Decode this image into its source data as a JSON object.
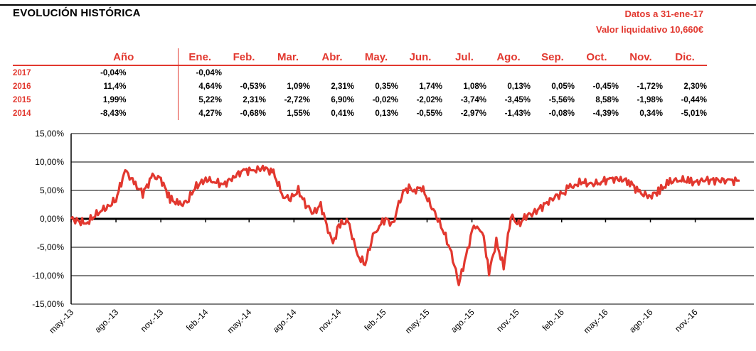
{
  "header": {
    "title": "EVOLUCIÓN HISTÓRICA",
    "date_label": "Datos a 31-ene-17",
    "nav_label": "Valor liquidativo 10,660€"
  },
  "colors": {
    "accent": "#e2382f",
    "line": "#e2382f",
    "grid": "#000000"
  },
  "table": {
    "headers": [
      "Año",
      "Ene.",
      "Feb.",
      "Mar.",
      "Abr.",
      "May.",
      "Jun.",
      "Jul.",
      "Ago.",
      "Sep.",
      "Oct.",
      "Nov.",
      "Dic."
    ],
    "rows": [
      {
        "year": "2017",
        "annual": "-0,04%",
        "months": [
          "-0,04%",
          "",
          "",
          "",
          "",
          "",
          "",
          "",
          "",
          "",
          "",
          ""
        ]
      },
      {
        "year": "2016",
        "annual": "11,4%",
        "months": [
          "4,64%",
          "-0,53%",
          "1,09%",
          "2,31%",
          "0,35%",
          "1,74%",
          "1,08%",
          "0,13%",
          "0,05%",
          "-0,45%",
          "-1,72%",
          "2,30%"
        ]
      },
      {
        "year": "2015",
        "annual": "1,99%",
        "months": [
          "5,22%",
          "2,31%",
          "-2,72%",
          "6,90%",
          "-0,02%",
          "-2,02%",
          "-3,74%",
          "-3,45%",
          "-5,56%",
          "8,58%",
          "-1,98%",
          "-0,44%"
        ]
      },
      {
        "year": "2014",
        "annual": "-8,43%",
        "months": [
          "4,27%",
          "-0,68%",
          "1,55%",
          "0,41%",
          "0,13%",
          "-0,55%",
          "-2,97%",
          "-1,43%",
          "-0,08%",
          "-4,39%",
          "0,34%",
          "-5,01%"
        ]
      }
    ]
  },
  "chart_data": {
    "type": "line",
    "title": "",
    "xlabel": "",
    "ylabel": "",
    "ylim": [
      -15,
      15
    ],
    "yticks": [
      "15,00%",
      "10,00%",
      "5,00%",
      "0,00%",
      "-5,00%",
      "-10,00%",
      "-15,00%"
    ],
    "xtick_labels": [
      "may.-13",
      "ago.-13",
      "nov.-13",
      "feb.-14",
      "may.-14",
      "ago.-14",
      "nov.-14",
      "feb.-15",
      "may.-15",
      "ago.-15",
      "nov.-15",
      "feb.-16",
      "may.-16",
      "ago.-16",
      "nov.-16"
    ],
    "grid": true,
    "series": [
      {
        "x": [
          "2013-05-01",
          "2013-06-01",
          "2013-07-01",
          "2013-07-15",
          "2013-08-01",
          "2013-08-20",
          "2013-09-10",
          "2013-09-25",
          "2013-10-15",
          "2013-11-01",
          "2013-11-20",
          "2013-12-10",
          "2013-12-25",
          "2014-01-10",
          "2014-02-01",
          "2014-02-20",
          "2014-03-10",
          "2014-04-01",
          "2014-04-20",
          "2014-05-10",
          "2014-06-01",
          "2014-06-20",
          "2014-07-10",
          "2014-07-25",
          "2014-08-10",
          "2014-08-25",
          "2014-09-10",
          "2014-09-25",
          "2014-10-10",
          "2014-10-20",
          "2014-11-01",
          "2014-11-20",
          "2014-12-10",
          "2014-12-25",
          "2015-01-10",
          "2015-01-20",
          "2015-02-05",
          "2015-02-20",
          "2015-03-10",
          "2015-03-25",
          "2015-04-05",
          "2015-04-20",
          "2015-05-05",
          "2015-05-20",
          "2015-06-05",
          "2015-06-20",
          "2015-07-05",
          "2015-07-20",
          "2015-08-05",
          "2015-08-15",
          "2015-08-25",
          "2015-09-05",
          "2015-09-20",
          "2015-10-05",
          "2015-10-20",
          "2015-11-05",
          "2015-11-20",
          "2015-12-05",
          "2015-12-20",
          "2016-01-05",
          "2016-01-20",
          "2016-02-05",
          "2016-02-15",
          "2016-02-28",
          "2016-03-15",
          "2016-04-01",
          "2016-04-20",
          "2016-05-10",
          "2016-06-01",
          "2016-06-20",
          "2016-07-10",
          "2016-08-01",
          "2016-08-20",
          "2016-09-10",
          "2016-10-01",
          "2016-10-20",
          "2016-11-05",
          "2016-11-20",
          "2016-12-05",
          "2016-12-20",
          "2017-01-10",
          "2017-01-31"
        ],
        "y": [
          0.0,
          -0.8,
          1.5,
          2.0,
          3.5,
          8.5,
          6.0,
          4.5,
          7.5,
          7.0,
          3.5,
          2.5,
          3.0,
          5.5,
          7.0,
          6.5,
          6.0,
          7.5,
          8.5,
          8.5,
          9.0,
          8.0,
          4.0,
          3.5,
          5.0,
          2.5,
          1.0,
          2.5,
          -2.0,
          -4.5,
          -1.0,
          -0.5,
          -6.5,
          -8.0,
          -3.0,
          -1.5,
          0.0,
          -1.0,
          4.5,
          5.5,
          5.0,
          5.5,
          3.0,
          0.5,
          -2.5,
          -6.0,
          -11.5,
          -6.5,
          -1.0,
          -2.0,
          -3.0,
          -9.5,
          -4.0,
          -8.5,
          0.5,
          -1.0,
          0.5,
          1.0,
          2.0,
          3.0,
          4.0,
          4.5,
          5.5,
          6.0,
          6.5,
          6.0,
          6.5,
          7.0,
          7.0,
          6.5,
          4.5,
          4.0,
          5.0,
          6.5,
          7.0,
          6.5,
          6.5,
          6.8,
          6.8,
          6.8,
          6.7,
          6.7
        ]
      }
    ]
  }
}
